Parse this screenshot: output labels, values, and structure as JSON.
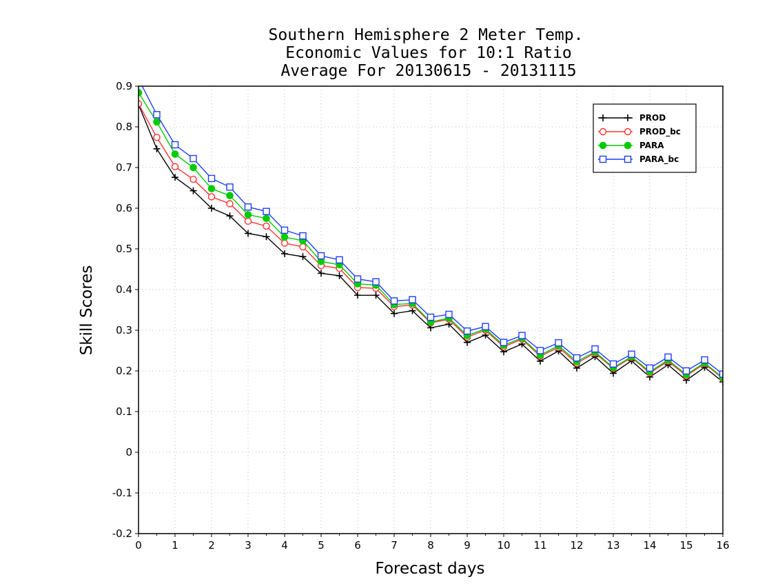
{
  "chart_data": {
    "type": "line",
    "title": [
      "Southern Hemisphere 2 Meter Temp.",
      "Economic Values for 10:1 Ratio",
      "Average For 20130615 - 20131115"
    ],
    "xlabel": "Forecast days",
    "ylabel": "Skill Scores",
    "xlim": [
      0,
      16
    ],
    "ylim": [
      -0.2,
      0.9
    ],
    "xticks": [
      0,
      1,
      2,
      3,
      4,
      5,
      6,
      7,
      8,
      9,
      10,
      11,
      12,
      13,
      14,
      15,
      16
    ],
    "yticks": [
      -0.2,
      -0.1,
      0,
      0.1,
      0.2,
      0.3,
      0.4,
      0.5,
      0.6,
      0.7,
      0.8,
      0.9
    ],
    "ytick_labels": [
      "-0.2",
      "-0.1",
      "0",
      "0.1",
      "0.2",
      "0.3",
      "0.4",
      "0.5",
      "0.6",
      "0.7",
      "0.8",
      "0.9"
    ],
    "grid": true,
    "legend_position": "top-right",
    "x": [
      0,
      0.5,
      1,
      1.5,
      2,
      2.5,
      3,
      3.5,
      4,
      4.5,
      5,
      5.5,
      6,
      6.5,
      7,
      7.5,
      8,
      8.5,
      9,
      9.5,
      10,
      10.5,
      11,
      11.5,
      12,
      12.5,
      13,
      13.5,
      14,
      14.5,
      15,
      15.5,
      16
    ],
    "series": [
      {
        "name": "PROD",
        "color": "#000000",
        "marker": "plus",
        "values": [
          0.855,
          0.746,
          0.676,
          0.643,
          0.6,
          0.581,
          0.538,
          0.53,
          0.488,
          0.481,
          0.44,
          0.434,
          0.386,
          0.386,
          0.341,
          0.348,
          0.306,
          0.315,
          0.27,
          0.288,
          0.247,
          0.266,
          0.224,
          0.249,
          0.207,
          0.235,
          0.194,
          0.225,
          0.185,
          0.215,
          0.177,
          0.209,
          0.173
        ]
      },
      {
        "name": "PROD_bc",
        "color": "#ff3030",
        "marker": "circle-open",
        "values": [
          0.857,
          0.774,
          0.702,
          0.671,
          0.628,
          0.611,
          0.568,
          0.556,
          0.514,
          0.505,
          0.459,
          0.452,
          0.405,
          0.403,
          0.358,
          0.362,
          0.318,
          0.327,
          0.283,
          0.3,
          0.259,
          0.278,
          0.236,
          0.258,
          0.219,
          0.244,
          0.206,
          0.233,
          0.195,
          0.224,
          0.188,
          0.218,
          0.181
        ]
      },
      {
        "name": "PARA",
        "color": "#00cc00",
        "marker": "circle-filled",
        "values": [
          0.884,
          0.812,
          0.733,
          0.7,
          0.648,
          0.631,
          0.584,
          0.575,
          0.529,
          0.52,
          0.469,
          0.461,
          0.414,
          0.411,
          0.363,
          0.366,
          0.32,
          0.33,
          0.287,
          0.303,
          0.263,
          0.281,
          0.239,
          0.262,
          0.223,
          0.247,
          0.208,
          0.235,
          0.198,
          0.227,
          0.191,
          0.22,
          0.183
        ]
      },
      {
        "name": "PARA_bc",
        "color": "#1f3cff",
        "marker": "square-open",
        "values": [
          0.918,
          0.83,
          0.756,
          0.722,
          0.673,
          0.652,
          0.603,
          0.592,
          0.546,
          0.532,
          0.483,
          0.473,
          0.426,
          0.419,
          0.372,
          0.375,
          0.332,
          0.339,
          0.298,
          0.309,
          0.27,
          0.287,
          0.25,
          0.269,
          0.232,
          0.254,
          0.217,
          0.241,
          0.207,
          0.234,
          0.2,
          0.227,
          0.192
        ]
      }
    ]
  }
}
